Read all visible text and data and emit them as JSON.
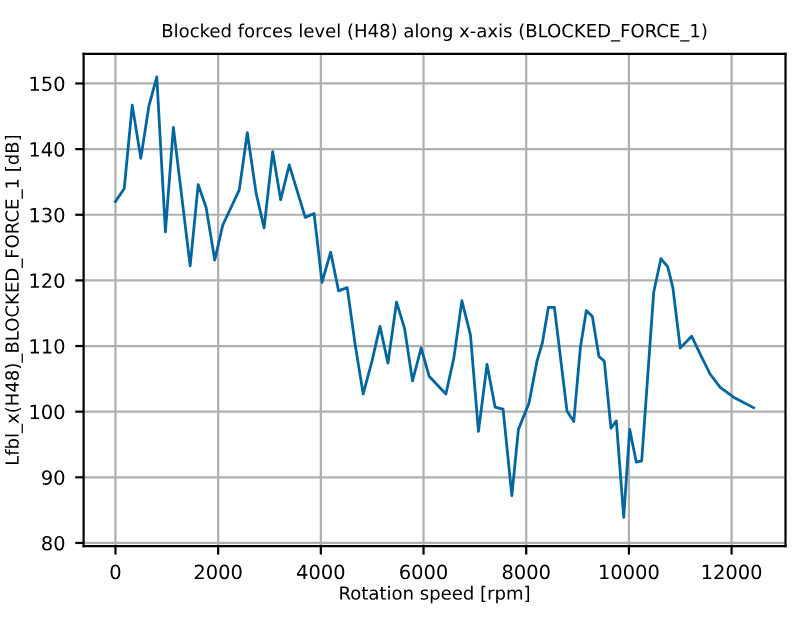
{
  "chart_data": {
    "type": "line",
    "title": "Blocked forces level (H48) along x-axis (BLOCKED_FORCE_1)",
    "xlabel": "Rotation speed [rpm]",
    "ylabel": "Lfbl_x(H48)_BLOCKED_FORCE_1 [dB]",
    "x": [
      0,
      171,
      327,
      494,
      650,
      805,
      973,
      1128,
      1455,
      1611,
      1766,
      1934,
      2089,
      2412,
      2568,
      2739,
      2895,
      3062,
      3218,
      3385,
      3696,
      3868,
      4023,
      4191,
      4346,
      4514,
      4669,
      4825,
      4996,
      5152,
      5307,
      5475,
      5630,
      5786,
      5953,
      6109,
      6436,
      6591,
      6747,
      6914,
      7070,
      7237,
      7393,
      7549,
      7720,
      7848,
      8054,
      8210,
      8315,
      8432,
      8549,
      8794,
      8926,
      9054,
      9171,
      9288,
      9416,
      9521,
      9650,
      9755,
      9899,
      10016,
      10144,
      10249,
      10483,
      10623,
      10755,
      10856,
      11000,
      11222,
      11393,
      11584,
      11778,
      12039,
      12428
    ],
    "series": [
      {
        "color": "#0066a0",
        "values": [
          132,
          134,
          146.7,
          138.6,
          146.5,
          151,
          127.4,
          143.3,
          122.2,
          134.6,
          131.1,
          123.1,
          128.4,
          133.8,
          142.5,
          133.3,
          128,
          139.6,
          132.3,
          137.6,
          129.6,
          130.2,
          119.7,
          124.3,
          118.4,
          118.9,
          110.2,
          102.7,
          107.7,
          113,
          107.4,
          116.7,
          112.7,
          104.7,
          109.7,
          105.4,
          102.7,
          108.2,
          116.9,
          111.7,
          97,
          107.2,
          100.7,
          100.4,
          87.2,
          97.3,
          101.3,
          107.7,
          110.5,
          115.9,
          115.9,
          100.1,
          98.5,
          109.7,
          115.4,
          114.5,
          108.4,
          107.7,
          97.5,
          98.6,
          83.9,
          97.3,
          92.3,
          92.5,
          118.2,
          123.3,
          122.1,
          118.9,
          109.7,
          111.5,
          108.7,
          105.7,
          103.7,
          102.2,
          100.6
        ]
      }
    ],
    "xlim": [
      -620,
      13050
    ],
    "ylim": [
      79.5,
      154.5
    ],
    "xticks": [
      0,
      2000,
      4000,
      6000,
      8000,
      10000,
      12000
    ],
    "yticks": [
      80,
      90,
      100,
      110,
      120,
      130,
      140,
      150
    ],
    "grid": true,
    "marker": "none",
    "line_style": "solid"
  }
}
